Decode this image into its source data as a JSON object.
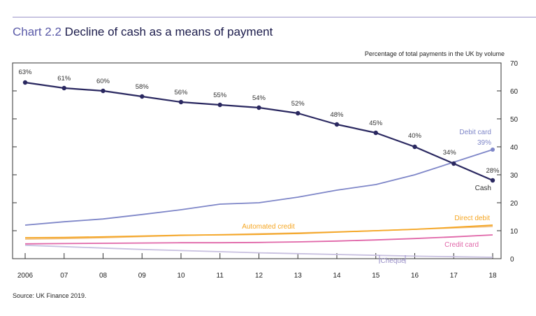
{
  "title": {
    "number": "Chart 2.2",
    "text": "Decline of cash as a means of payment"
  },
  "source": "Source: UK Finance 2019.",
  "colors": {
    "cash": "#2a2860",
    "debit_card": "#7e86c8",
    "direct_debit": "#f5a623",
    "automated_credit": "#f0c080",
    "credit_card": "#e066a8",
    "cheque": "#c8c0e0",
    "axis": "#333333",
    "grid": "#bbbbbb"
  },
  "chart_data": {
    "type": "line",
    "ylabel": "Percentage of total payments in the UK by volume",
    "ylim": [
      0,
      70
    ],
    "yticks": [
      "0",
      "10",
      "20",
      "30",
      "40",
      "50",
      "60",
      "70"
    ],
    "x": [
      2006,
      2007,
      2008,
      2009,
      2010,
      2011,
      2012,
      2013,
      2014,
      2015,
      2016,
      2017,
      2018
    ],
    "xtick_labels": [
      "2006",
      "07",
      "08",
      "09",
      "10",
      "11",
      "12",
      "13",
      "14",
      "15",
      "16",
      "17",
      "18"
    ],
    "series": [
      {
        "name": "Cash",
        "key": "cash",
        "values": [
          63,
          61,
          60,
          58,
          56,
          55,
          54,
          52,
          48,
          45,
          40,
          34,
          28
        ],
        "labels": [
          "63%",
          "61%",
          "60%",
          "58%",
          "56%",
          "55%",
          "54%",
          "52%",
          "48%",
          "45%",
          "40%",
          "34%",
          "28%"
        ],
        "markers": true
      },
      {
        "name": "Debit card",
        "key": "debit_card",
        "values": [
          12,
          13.2,
          14.2,
          15.8,
          17.5,
          19.5,
          20,
          22,
          24.5,
          26.5,
          30,
          34.5,
          39
        ],
        "end_label": "39%"
      },
      {
        "name": "Direct debit",
        "key": "direct_debit",
        "values": [
          7.5,
          7.6,
          7.8,
          8.1,
          8.4,
          8.5,
          8.7,
          9.0,
          9.5,
          10.0,
          10.5,
          11.2,
          12.0
        ]
      },
      {
        "name": "Automated credit",
        "key": "automated_credit",
        "values": [
          7.0,
          7.2,
          7.5,
          7.9,
          8.3,
          8.6,
          8.9,
          9.2,
          9.6,
          10.0,
          10.5,
          11.0,
          11.5
        ]
      },
      {
        "name": "Credit card",
        "key": "credit_card",
        "values": [
          5.3,
          5.4,
          5.5,
          5.6,
          5.7,
          5.7,
          5.8,
          6.0,
          6.3,
          6.7,
          7.2,
          7.8,
          8.5
        ]
      },
      {
        "name": "Cheque",
        "key": "cheque",
        "values": [
          4.8,
          4.3,
          3.8,
          3.3,
          2.9,
          2.5,
          2.1,
          1.8,
          1.5,
          1.2,
          0.9,
          0.7,
          0.5
        ]
      }
    ]
  }
}
